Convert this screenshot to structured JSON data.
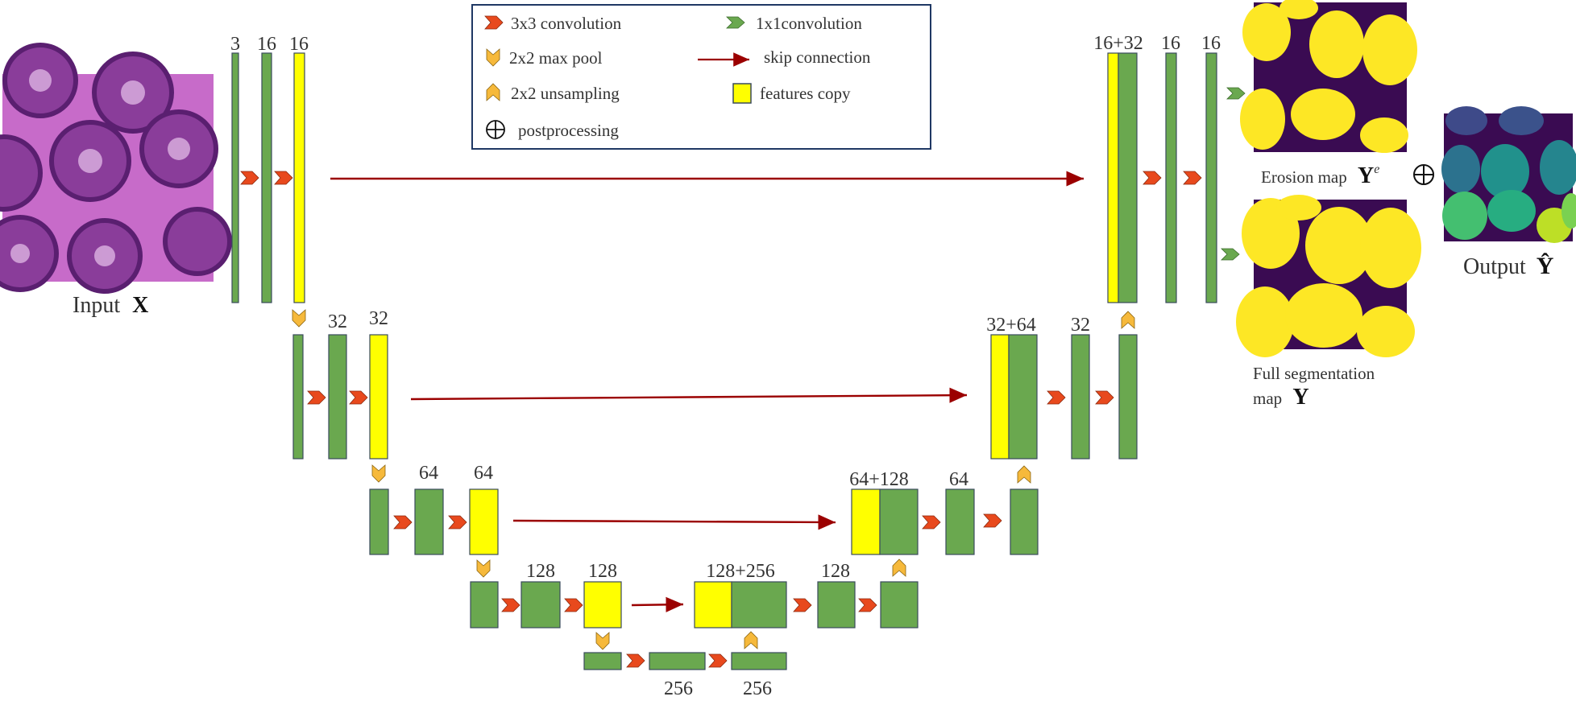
{
  "legend": {
    "conv3x3": "3x3 convolution",
    "conv1x1": "1x1convolution",
    "maxpool": "2x2 max pool",
    "skip": "skip connection",
    "upsample": "2x2 unsampling",
    "features_copy": "features copy",
    "postprocessing": "postprocessing"
  },
  "labels": {
    "l1": [
      "3",
      "16",
      "16"
    ],
    "l2": [
      "32",
      "32"
    ],
    "l3": [
      "64",
      "64"
    ],
    "l4": [
      "128",
      "128"
    ],
    "bottom": [
      "256",
      "256"
    ],
    "d4": [
      "128+256",
      "128"
    ],
    "d3": [
      "64+128",
      "64"
    ],
    "d2": [
      "32+64",
      "32"
    ],
    "d1": [
      "16+32",
      "16",
      "16"
    ]
  },
  "captions": {
    "input": "Input",
    "input_symbol": "X",
    "erosion": "Erosion map",
    "erosion_symbol": "Y",
    "erosion_sup": "e",
    "full_seg_line1": "Full segmentation",
    "full_seg_line2": "map",
    "full_seg_symbol": "Y",
    "output": "Output",
    "output_symbol": "Ŷ",
    "oplus": "⊕"
  },
  "colors": {
    "green": "#6aa84f",
    "yellow": "#ffff00",
    "arrow": "#9b0000",
    "conv": "#e8491d",
    "pool": "#f6b93b",
    "conv1x1": "#6aa84f",
    "border": "#3a4a5c",
    "legend_border": "#1f3864",
    "tissue_bg": "#c76bc9",
    "mask_bg": "#3a0b52",
    "mask_fg": "#fde725"
  }
}
